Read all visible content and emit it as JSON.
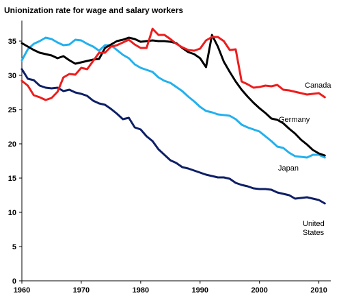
{
  "chart_data": {
    "type": "line",
    "title": "Unionization rate for wage and salary workers",
    "xlabel": "",
    "ylabel": "",
    "xlim": [
      1960,
      2012
    ],
    "ylim": [
      0,
      38
    ],
    "x_ticks": [
      1960,
      1970,
      1980,
      1990,
      2000,
      2010
    ],
    "y_ticks": [
      0,
      5,
      10,
      15,
      20,
      25,
      30,
      35
    ],
    "grid": false,
    "legend": "inline labels at right",
    "x": [
      1960,
      1961,
      1962,
      1963,
      1964,
      1965,
      1966,
      1967,
      1968,
      1969,
      1970,
      1971,
      1972,
      1973,
      1974,
      1975,
      1976,
      1977,
      1978,
      1979,
      1980,
      1981,
      1982,
      1983,
      1984,
      1985,
      1986,
      1987,
      1988,
      1989,
      1990,
      1991,
      1992,
      1993,
      1994,
      1995,
      1996,
      1997,
      1998,
      1999,
      2000,
      2001,
      2002,
      2003,
      2004,
      2005,
      2006,
      2007,
      2008,
      2009,
      2010,
      2011
    ],
    "series": [
      {
        "name": "Canada",
        "color": "#ee1c1c",
        "label_lines": [
          "Canada"
        ],
        "values": [
          29.2,
          28.5,
          27.1,
          26.8,
          26.4,
          26.7,
          27.6,
          29.7,
          30.2,
          30.1,
          31.1,
          30.9,
          32.1,
          33.3,
          33.3,
          34.2,
          34.4,
          34.8,
          35.2,
          34.5,
          34.0,
          34.0,
          36.8,
          35.9,
          35.9,
          35.3,
          34.6,
          34.1,
          33.7,
          33.6,
          33.9,
          35.1,
          35.6,
          35.6,
          35.0,
          33.7,
          33.8,
          29.1,
          28.7,
          28.2,
          28.3,
          28.5,
          28.4,
          28.6,
          27.9,
          27.8,
          27.6,
          27.4,
          27.2,
          27.3,
          27.4,
          26.8
        ]
      },
      {
        "name": "Germany",
        "color": "#000000",
        "label_lines": [
          "Germany"
        ],
        "values": [
          34.7,
          34.2,
          33.7,
          33.3,
          33.1,
          32.9,
          32.5,
          32.8,
          32.2,
          31.7,
          31.9,
          32.1,
          32.3,
          32.4,
          34.0,
          34.5,
          35.0,
          35.2,
          35.5,
          35.3,
          34.9,
          35.0,
          35.1,
          35.0,
          35.0,
          34.9,
          34.7,
          34.0,
          33.4,
          33.1,
          32.5,
          31.2,
          35.9,
          34.2,
          32.0,
          30.5,
          29.1,
          27.9,
          26.9,
          26.0,
          25.2,
          24.5,
          23.7,
          23.5,
          23.0,
          22.2,
          21.5,
          20.6,
          19.9,
          19.1,
          18.6,
          18.3
        ]
      },
      {
        "name": "Japan",
        "color": "#22b0ee",
        "label_lines": [
          "Japan"
        ],
        "values": [
          32.2,
          33.8,
          34.6,
          35.0,
          35.5,
          35.3,
          34.8,
          34.4,
          34.5,
          35.2,
          35.1,
          34.6,
          34.2,
          33.6,
          34.4,
          34.4,
          33.7,
          33.0,
          32.5,
          31.6,
          31.1,
          30.8,
          30.5,
          29.7,
          29.2,
          28.9,
          28.3,
          27.7,
          26.9,
          26.2,
          25.4,
          24.8,
          24.6,
          24.3,
          24.2,
          24.1,
          23.6,
          22.8,
          22.4,
          22.1,
          21.8,
          21.1,
          20.4,
          19.6,
          19.4,
          18.7,
          18.2,
          18.1,
          18.0,
          18.4,
          18.4,
          18.0
        ]
      },
      {
        "name": "United States",
        "color": "#0e1f66",
        "label_lines": [
          "United",
          "States"
        ],
        "values": [
          30.9,
          29.5,
          29.3,
          28.5,
          28.2,
          28.1,
          28.2,
          27.7,
          27.9,
          27.5,
          27.3,
          27.0,
          26.3,
          25.9,
          25.7,
          25.1,
          24.4,
          23.6,
          23.8,
          22.4,
          22.1,
          21.1,
          20.4,
          19.2,
          18.4,
          17.6,
          17.2,
          16.6,
          16.4,
          16.1,
          15.8,
          15.5,
          15.3,
          15.1,
          15.1,
          14.9,
          14.3,
          14.0,
          13.8,
          13.5,
          13.4,
          13.4,
          13.3,
          12.9,
          12.7,
          12.5,
          12.0,
          12.1,
          12.2,
          12.0,
          11.8,
          11.3
        ]
      }
    ]
  }
}
